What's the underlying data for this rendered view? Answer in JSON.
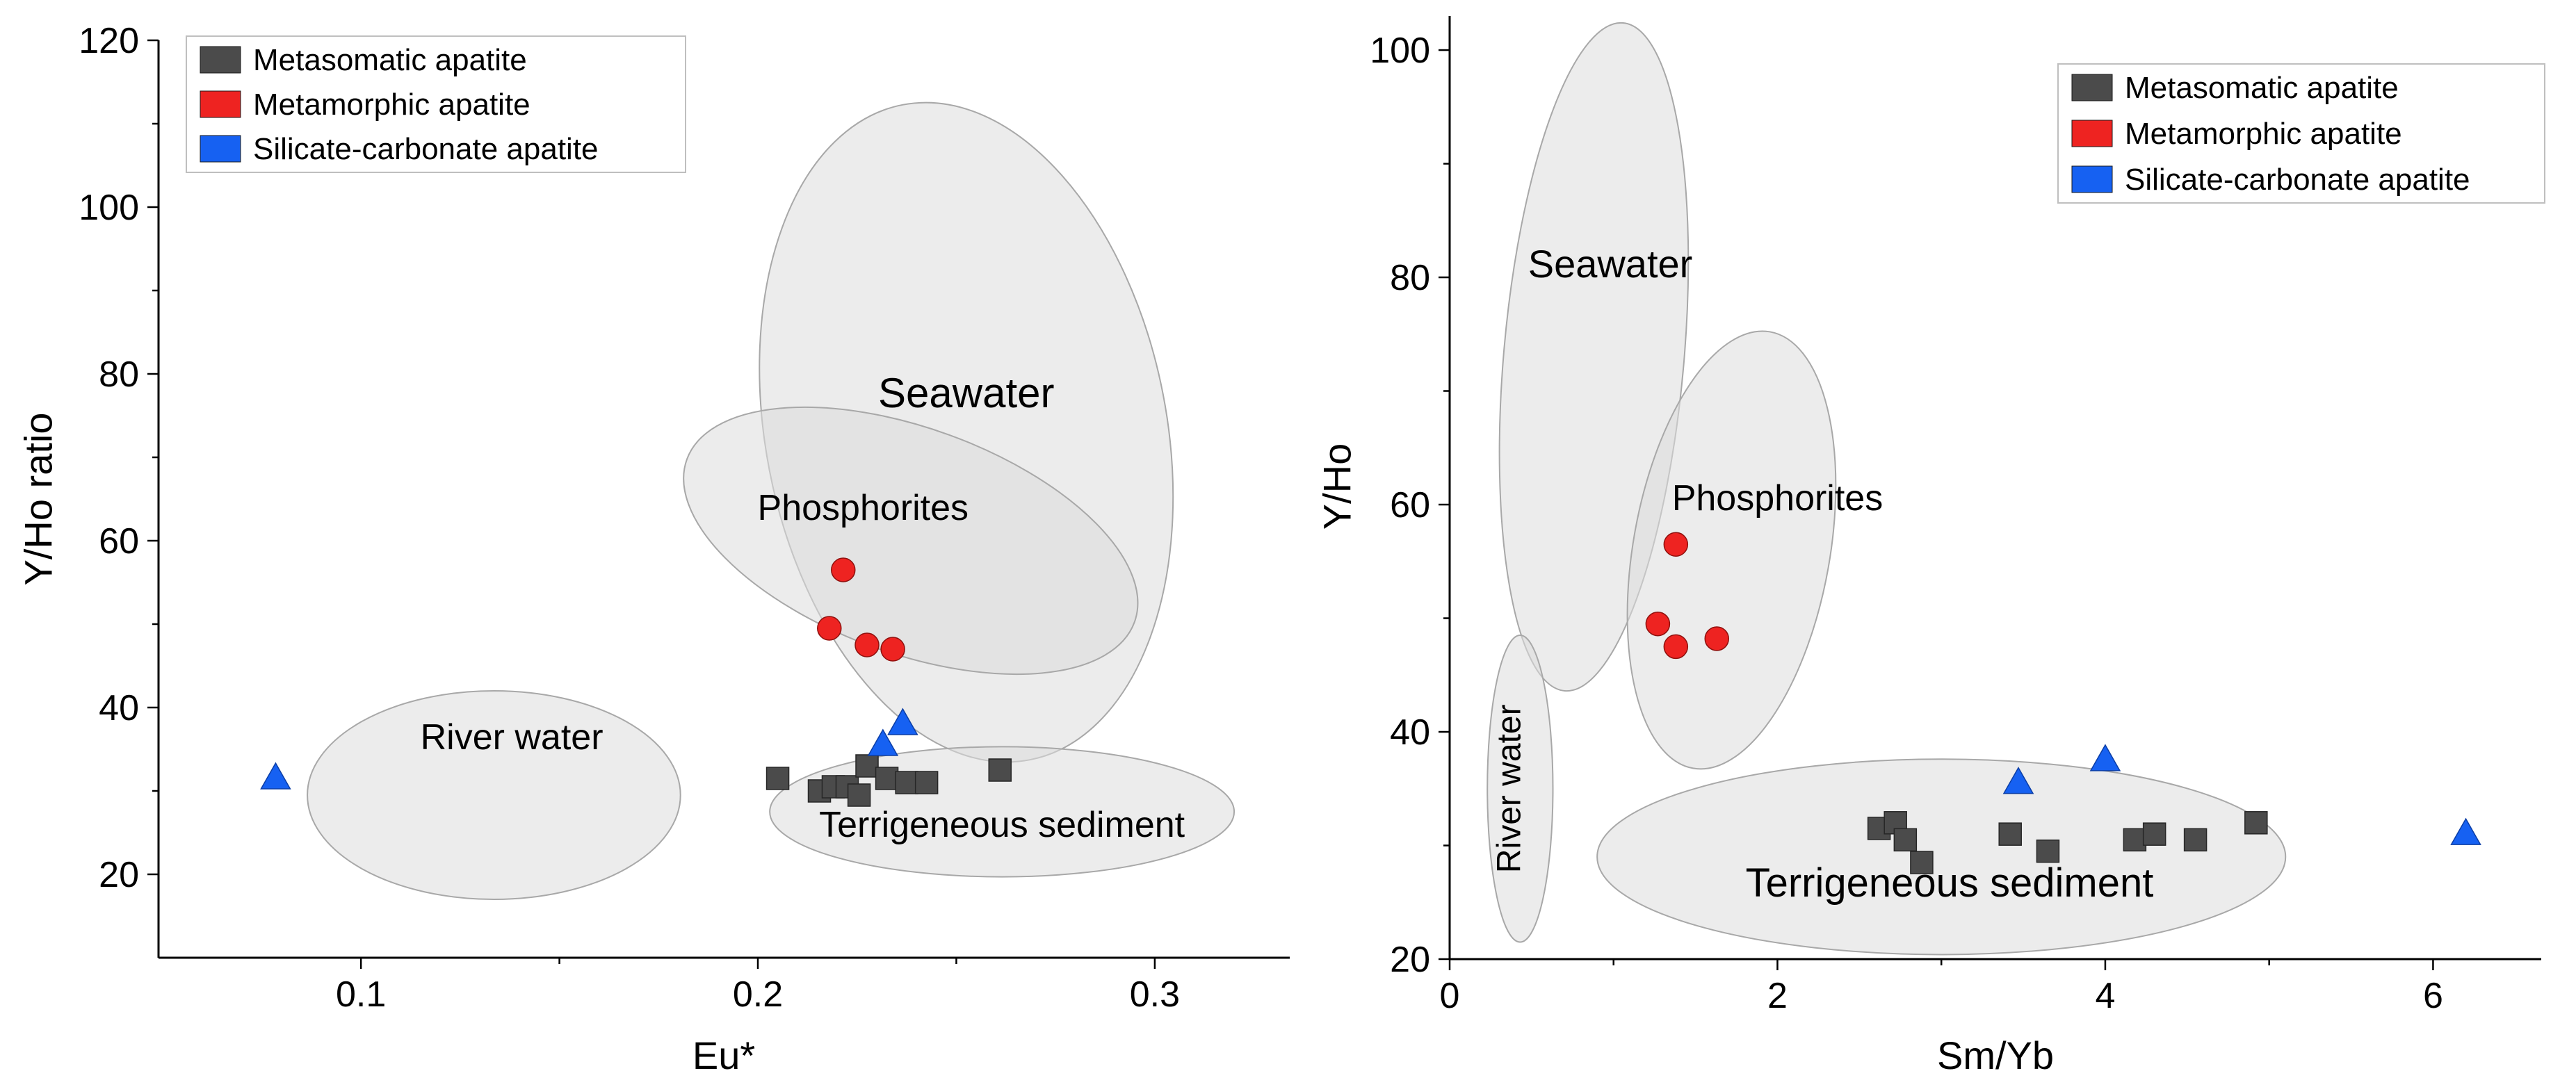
{
  "style": {
    "background": "#ffffff",
    "axis_color": "#000000",
    "region_fill": "#dcdcdc",
    "region_opacity": 0.55,
    "region_stroke": "#a8a8a8",
    "legend_border": "#bfbfbf",
    "legend_background": "#ffffff"
  },
  "chart_data": [
    {
      "id": "left",
      "type": "scatter",
      "title": "",
      "xlabel": "Eu*",
      "ylabel": "Y/Ho ratio",
      "xlim": [
        0.049,
        0.334
      ],
      "ylim": [
        10,
        120
      ],
      "xticks": [
        0.1,
        0.2,
        0.3
      ],
      "xtick_labels": [
        "0.1",
        "0.2",
        "0.3"
      ],
      "x_minor_ticks": [
        0.15,
        0.25
      ],
      "yticks": [
        20,
        40,
        60,
        80,
        100,
        120
      ],
      "ytick_labels": [
        "20",
        "40",
        "60",
        "80",
        "100",
        "120"
      ],
      "y_minor_ticks": [
        30,
        50,
        70,
        90,
        110
      ],
      "grid": false,
      "legend_position": "top-left",
      "series": [
        {
          "name": "Metasomatic apatite",
          "marker": "square",
          "color": "#4b4b4b",
          "points": [
            [
              0.205,
              31.5
            ],
            [
              0.2155,
              30
            ],
            [
              0.219,
              30.5
            ],
            [
              0.2225,
              30.5
            ],
            [
              0.2255,
              29.5
            ],
            [
              0.2275,
              33
            ],
            [
              0.2325,
              31.5
            ],
            [
              0.2375,
              31
            ],
            [
              0.2425,
              31
            ],
            [
              0.261,
              32.5
            ]
          ]
        },
        {
          "name": "Metamorphic apatite",
          "marker": "circle",
          "color": "#ee2321",
          "points": [
            [
              0.2215,
              56.5
            ],
            [
              0.218,
              49.5
            ],
            [
              0.2275,
              47.5
            ],
            [
              0.234,
              47
            ]
          ]
        },
        {
          "name": "Silicate-carbonate apatite",
          "marker": "triangle",
          "color": "#1661f2",
          "points": [
            [
              0.0785,
              31.5
            ],
            [
              0.2315,
              35.5
            ],
            [
              0.2365,
              38
            ]
          ]
        }
      ],
      "regions": [
        {
          "label": "Seawater",
          "cx": 0.2525,
          "cy": 73,
          "rx": 0.0505,
          "ry": 40,
          "rotation": -11,
          "label_x": 0.2525,
          "label_y": 76,
          "label_size": 60
        },
        {
          "label": "Phosphorites",
          "cx": 0.2385,
          "cy": 60,
          "rx": 0.06,
          "ry": 13.5,
          "rotation": 20,
          "label_x": 0.2265,
          "label_y": 62.5,
          "label_size": 52
        },
        {
          "label": "River water",
          "cx": 0.1335,
          "cy": 29.5,
          "rx": 0.047,
          "ry": 12.5,
          "rotation": 0,
          "label_x": 0.138,
          "label_y": 35,
          "label_size": 52
        },
        {
          "label": "Terrigeneous sediment",
          "cx": 0.2615,
          "cy": 27.5,
          "rx": 0.0585,
          "ry": 7.8,
          "rotation": 0,
          "label_x": 0.2615,
          "label_y": 24.5,
          "label_size": 52
        }
      ]
    },
    {
      "id": "right",
      "type": "scatter",
      "title": "",
      "xlabel": "Sm/Yb",
      "ylabel": "Y/Ho",
      "xlim": [
        0,
        6.66
      ],
      "ylim": [
        20,
        103
      ],
      "xticks": [
        0,
        2,
        4,
        6
      ],
      "xtick_labels": [
        "0",
        "2",
        "4",
        "6"
      ],
      "x_minor_ticks": [
        1,
        3,
        5
      ],
      "yticks": [
        20,
        40,
        60,
        80,
        100
      ],
      "ytick_labels": [
        "20",
        "40",
        "60",
        "80",
        "100"
      ],
      "y_minor_ticks": [
        30,
        50,
        70,
        90
      ],
      "grid": false,
      "legend_position": "top-right",
      "series": [
        {
          "name": "Metasomatic apatite",
          "marker": "square",
          "color": "#4b4b4b",
          "points": [
            [
              2.62,
              31.5
            ],
            [
              2.72,
              32
            ],
            [
              2.78,
              30.5
            ],
            [
              2.88,
              28.5
            ],
            [
              3.42,
              31
            ],
            [
              3.65,
              29.5
            ],
            [
              4.18,
              30.5
            ],
            [
              4.3,
              31
            ],
            [
              4.55,
              30.5
            ],
            [
              4.92,
              32
            ]
          ]
        },
        {
          "name": "Metamorphic apatite",
          "marker": "circle",
          "color": "#ee2321",
          "points": [
            [
              1.38,
              56.5
            ],
            [
              1.27,
              49.5
            ],
            [
              1.38,
              47.5
            ],
            [
              1.63,
              48.2
            ]
          ]
        },
        {
          "name": "Silicate-carbonate apatite",
          "marker": "triangle",
          "color": "#1661f2",
          "points": [
            [
              3.47,
              35.5
            ],
            [
              4.0,
              37.5
            ],
            [
              6.2,
              31
            ]
          ]
        }
      ],
      "regions": [
        {
          "label": "Seawater",
          "cx": 0.88,
          "cy": 73,
          "rx": 0.55,
          "ry": 29.5,
          "rotation": 5,
          "label_x": 0.98,
          "label_y": 80,
          "label_size": 56
        },
        {
          "label": "Phosphorites",
          "cx": 1.72,
          "cy": 56,
          "rx": 0.6,
          "ry": 19.5,
          "rotation": 10,
          "label_x": 2.0,
          "label_y": 59.5,
          "label_size": 52
        },
        {
          "label": "River water",
          "cx": 0.43,
          "cy": 35,
          "rx": 0.2,
          "ry": 13.5,
          "rotation": 0,
          "label_x": 0.43,
          "label_y": 35,
          "label_size": 48,
          "label_rotation": -90
        },
        {
          "label": "Terrigeneous sediment",
          "cx": 3.0,
          "cy": 29,
          "rx": 2.1,
          "ry": 8.6,
          "rotation": 0,
          "label_x": 3.05,
          "label_y": 25.5,
          "label_size": 58
        }
      ]
    }
  ]
}
